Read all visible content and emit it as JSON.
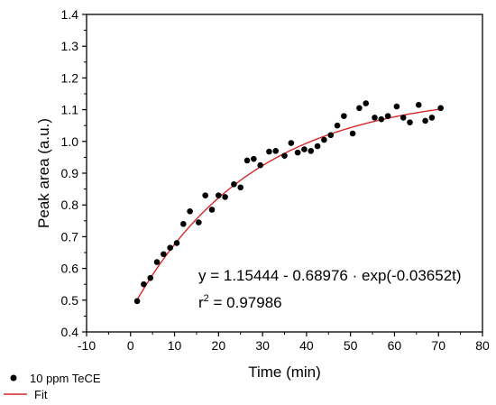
{
  "chart_data": {
    "type": "scatter",
    "xlabel": "Time (min)",
    "ylabel": "Peak area (a.u.)",
    "xlim": [
      -10,
      80
    ],
    "ylim": [
      0.4,
      1.4
    ],
    "xticks": [
      -10,
      0,
      10,
      20,
      30,
      40,
      50,
      60,
      70,
      80
    ],
    "yticks": [
      0.4,
      0.5,
      0.6,
      0.7,
      0.8,
      0.9,
      1.0,
      1.1,
      1.2,
      1.3,
      1.4
    ],
    "xtick_labels": [
      "-10",
      "0",
      "10",
      "20",
      "30",
      "40",
      "50",
      "60",
      "70",
      "80"
    ],
    "ytick_labels": [
      "0.4",
      "0.5",
      "0.6",
      "0.7",
      "0.8",
      "0.9",
      "1.0",
      "1.1",
      "1.2",
      "1.3",
      "1.4"
    ],
    "grid": false,
    "legend_position": "bottom-left",
    "series": [
      {
        "name": "10 ppm TeCE",
        "marker": "circle",
        "color": "#000000",
        "points": [
          [
            1.5,
            0.497
          ],
          [
            3,
            0.55
          ],
          [
            4.5,
            0.57
          ],
          [
            6,
            0.62
          ],
          [
            7.5,
            0.645
          ],
          [
            9,
            0.665
          ],
          [
            10.5,
            0.68
          ],
          [
            12,
            0.74
          ],
          [
            13.5,
            0.78
          ],
          [
            15.5,
            0.745
          ],
          [
            17,
            0.83
          ],
          [
            18.5,
            0.785
          ],
          [
            20,
            0.83
          ],
          [
            21.5,
            0.825
          ],
          [
            23.5,
            0.865
          ],
          [
            25,
            0.855
          ],
          [
            26.5,
            0.94
          ],
          [
            28,
            0.945
          ],
          [
            29.5,
            0.925
          ],
          [
            31.5,
            0.968
          ],
          [
            33,
            0.97
          ],
          [
            35,
            0.955
          ],
          [
            36.5,
            0.995
          ],
          [
            38,
            0.965
          ],
          [
            39.5,
            0.975
          ],
          [
            41,
            0.97
          ],
          [
            42.5,
            0.985
          ],
          [
            44,
            1.005
          ],
          [
            45.5,
            1.02
          ],
          [
            47,
            1.05
          ],
          [
            48.5,
            1.08
          ],
          [
            50.5,
            1.025
          ],
          [
            52,
            1.105
          ],
          [
            53.5,
            1.12
          ],
          [
            55.5,
            1.075
          ],
          [
            57,
            1.07
          ],
          [
            58.5,
            1.08
          ],
          [
            60.5,
            1.11
          ],
          [
            62,
            1.075
          ],
          [
            63.5,
            1.06
          ],
          [
            65.5,
            1.115
          ],
          [
            67,
            1.065
          ],
          [
            68.5,
            1.075
          ],
          [
            70.5,
            1.105
          ]
        ]
      },
      {
        "name": "Fit",
        "type": "line",
        "color": "#d62728",
        "x_range": [
          1.5,
          70.5
        ],
        "equation": {
          "a": 1.15444,
          "b": 0.68976,
          "k": 0.03652
        }
      }
    ],
    "annotations": {
      "equation": "y = 1.15444 - 0.68976 · exp(-0.03652t)",
      "r2_prefix": "r",
      "r2_superscript": "2",
      "r2_value": " = 0.97986"
    }
  }
}
